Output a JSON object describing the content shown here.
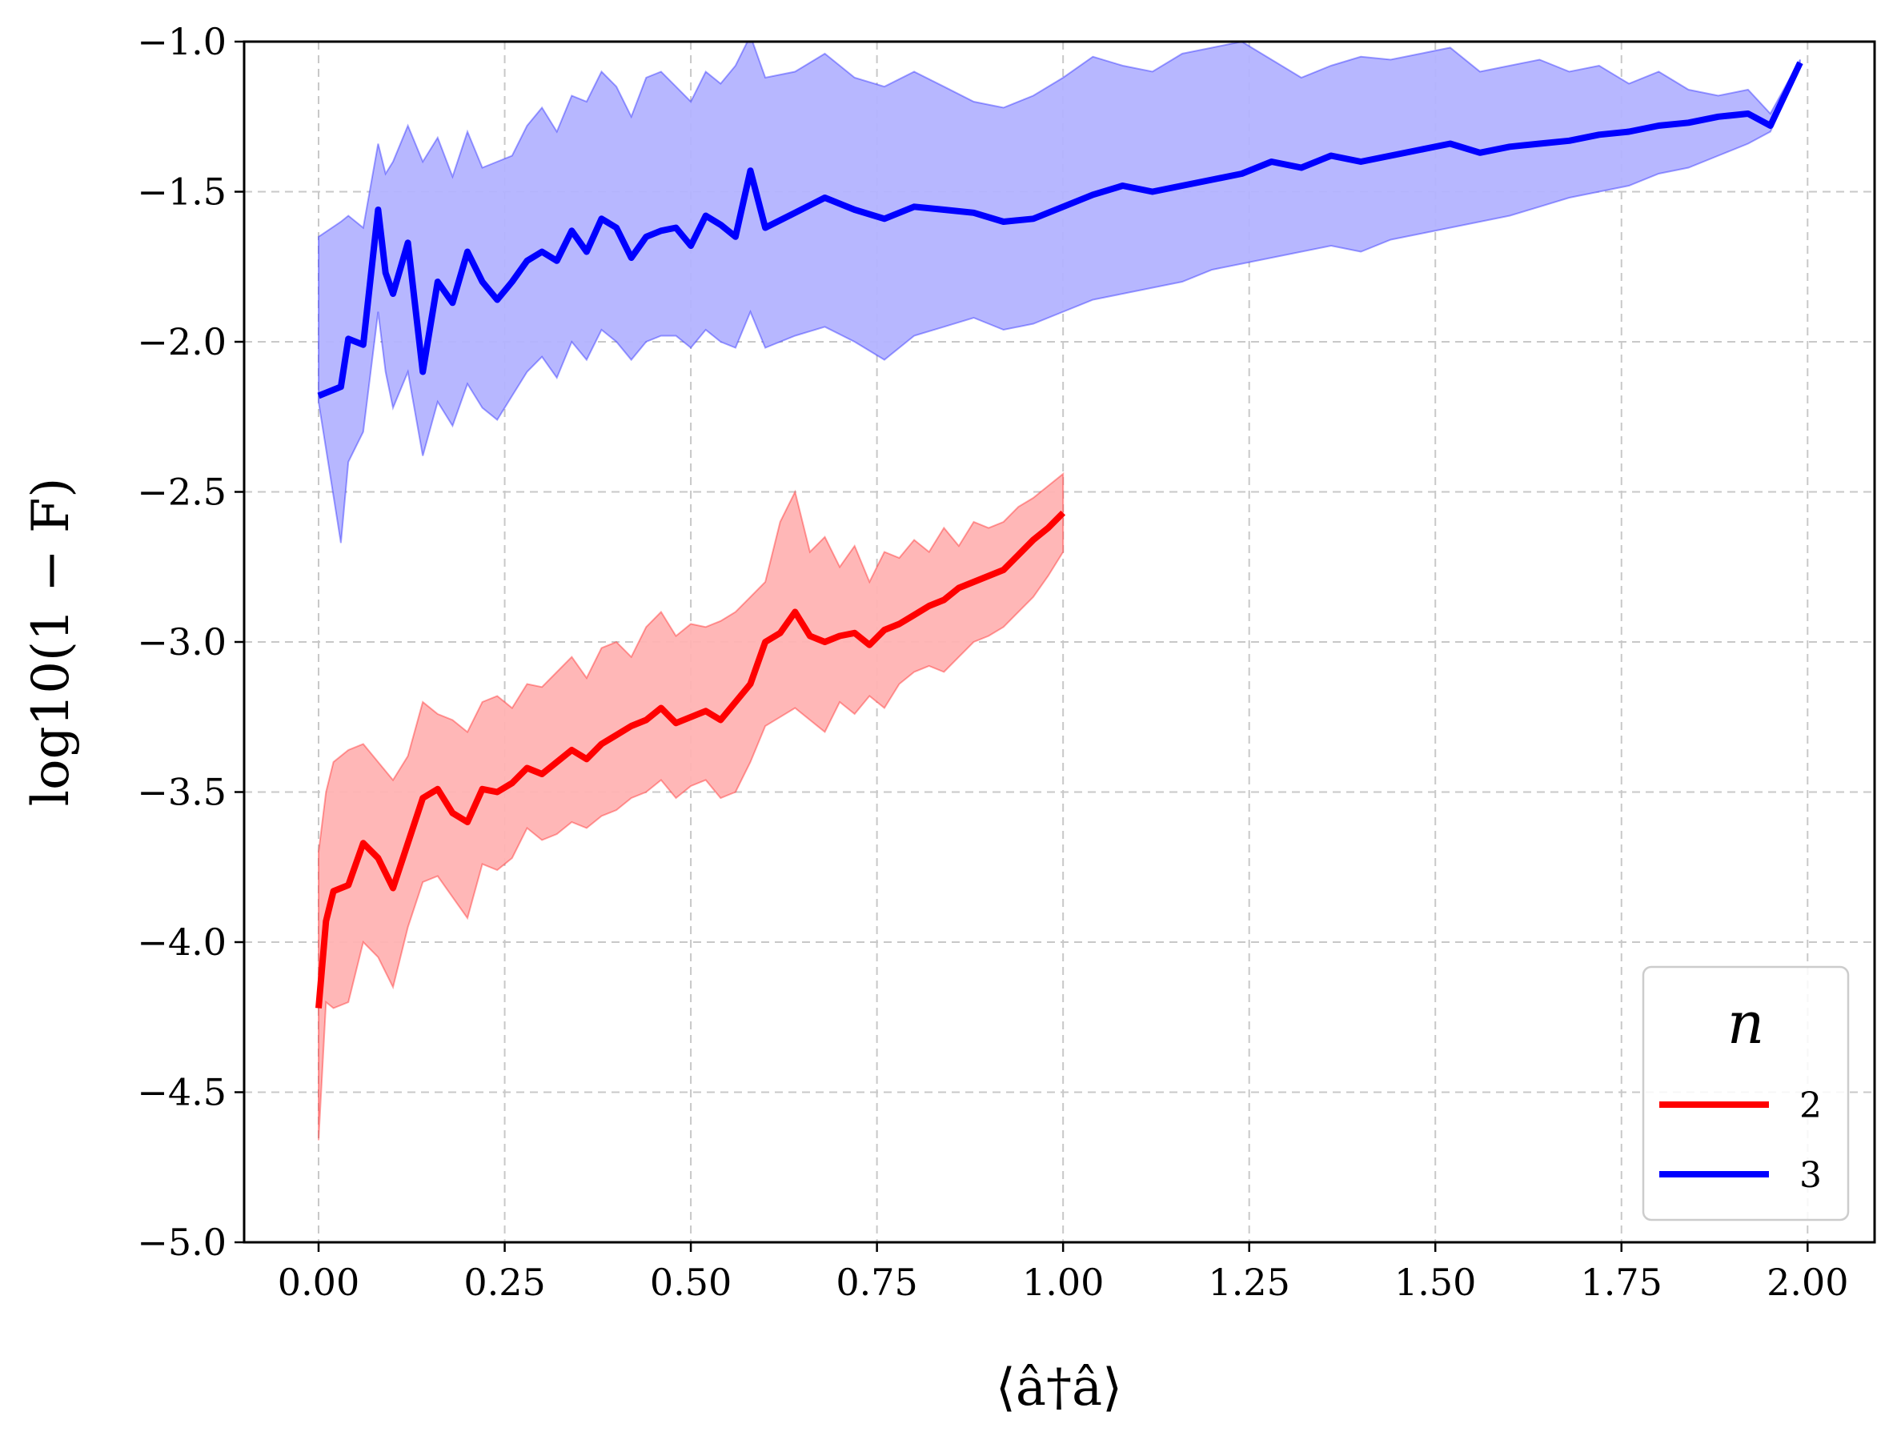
{
  "chart_data": {
    "type": "line",
    "title": "",
    "xlabel": "⟨â†â⟩",
    "ylabel": "log10(1 − F)",
    "xlim": [
      -0.1,
      2.09
    ],
    "ylim": [
      -5.0,
      -1.0
    ],
    "x_ticks": [
      "0.00",
      "0.25",
      "0.50",
      "0.75",
      "1.00",
      "1.25",
      "1.50",
      "1.75",
      "2.00"
    ],
    "y_ticks": [
      "−1.0",
      "−1.5",
      "−2.0",
      "−2.5",
      "−3.0",
      "−3.5",
      "−4.0",
      "−4.5",
      "−5.0"
    ],
    "grid": true,
    "legend": {
      "title": "n",
      "placement": "bottom-right"
    },
    "series": [
      {
        "name": "2",
        "color": "#ff0000",
        "band_color": "#ffb3b3",
        "x": [
          0.0,
          0.01,
          0.02,
          0.04,
          0.06,
          0.08,
          0.1,
          0.12,
          0.14,
          0.16,
          0.18,
          0.2,
          0.22,
          0.24,
          0.26,
          0.28,
          0.3,
          0.32,
          0.34,
          0.36,
          0.38,
          0.4,
          0.42,
          0.44,
          0.46,
          0.48,
          0.5,
          0.52,
          0.54,
          0.56,
          0.58,
          0.6,
          0.62,
          0.64,
          0.66,
          0.68,
          0.7,
          0.72,
          0.74,
          0.76,
          0.78,
          0.8,
          0.82,
          0.84,
          0.86,
          0.88,
          0.9,
          0.92,
          0.94,
          0.96,
          0.98,
          1.0
        ],
        "y": [
          -4.22,
          -3.93,
          -3.83,
          -3.81,
          -3.67,
          -3.72,
          -3.82,
          -3.67,
          -3.52,
          -3.49,
          -3.57,
          -3.6,
          -3.49,
          -3.5,
          -3.47,
          -3.42,
          -3.44,
          -3.4,
          -3.36,
          -3.39,
          -3.34,
          -3.31,
          -3.28,
          -3.26,
          -3.22,
          -3.27,
          -3.25,
          -3.23,
          -3.26,
          -3.2,
          -3.14,
          -3.0,
          -2.97,
          -2.9,
          -2.98,
          -3.0,
          -2.98,
          -2.97,
          -3.01,
          -2.96,
          -2.94,
          -2.91,
          -2.88,
          -2.86,
          -2.82,
          -2.8,
          -2.78,
          -2.76,
          -2.71,
          -2.66,
          -2.62,
          -2.57
        ],
        "upper": [
          -3.7,
          -3.5,
          -3.4,
          -3.36,
          -3.34,
          -3.4,
          -3.46,
          -3.38,
          -3.2,
          -3.24,
          -3.26,
          -3.3,
          -3.2,
          -3.18,
          -3.22,
          -3.14,
          -3.15,
          -3.1,
          -3.05,
          -3.12,
          -3.02,
          -3.0,
          -3.05,
          -2.95,
          -2.9,
          -2.98,
          -2.94,
          -2.95,
          -2.93,
          -2.9,
          -2.85,
          -2.8,
          -2.6,
          -2.5,
          -2.7,
          -2.65,
          -2.75,
          -2.68,
          -2.8,
          -2.7,
          -2.72,
          -2.66,
          -2.7,
          -2.62,
          -2.68,
          -2.6,
          -2.62,
          -2.6,
          -2.55,
          -2.52,
          -2.48,
          -2.44
        ],
        "lower": [
          -4.66,
          -4.2,
          -4.22,
          -4.2,
          -4.0,
          -4.05,
          -4.15,
          -3.95,
          -3.8,
          -3.78,
          -3.85,
          -3.92,
          -3.74,
          -3.76,
          -3.72,
          -3.62,
          -3.66,
          -3.64,
          -3.6,
          -3.62,
          -3.58,
          -3.56,
          -3.52,
          -3.5,
          -3.46,
          -3.52,
          -3.48,
          -3.46,
          -3.52,
          -3.5,
          -3.4,
          -3.28,
          -3.25,
          -3.22,
          -3.26,
          -3.3,
          -3.2,
          -3.24,
          -3.18,
          -3.22,
          -3.14,
          -3.1,
          -3.08,
          -3.1,
          -3.05,
          -3.0,
          -2.98,
          -2.95,
          -2.9,
          -2.85,
          -2.78,
          -2.7
        ]
      },
      {
        "name": "3",
        "color": "#0000ff",
        "band_color": "#b3b3ff",
        "x": [
          0.0,
          0.03,
          0.04,
          0.06,
          0.08,
          0.09,
          0.1,
          0.12,
          0.14,
          0.16,
          0.18,
          0.2,
          0.22,
          0.24,
          0.26,
          0.28,
          0.3,
          0.32,
          0.34,
          0.36,
          0.38,
          0.4,
          0.42,
          0.44,
          0.46,
          0.48,
          0.5,
          0.52,
          0.54,
          0.56,
          0.58,
          0.6,
          0.64,
          0.68,
          0.72,
          0.76,
          0.8,
          0.84,
          0.88,
          0.92,
          0.96,
          1.0,
          1.04,
          1.08,
          1.12,
          1.16,
          1.2,
          1.24,
          1.28,
          1.32,
          1.36,
          1.4,
          1.44,
          1.48,
          1.52,
          1.56,
          1.6,
          1.64,
          1.68,
          1.72,
          1.76,
          1.8,
          1.84,
          1.88,
          1.92,
          1.95,
          1.99
        ],
        "y": [
          -2.18,
          -2.15,
          -1.99,
          -2.01,
          -1.56,
          -1.77,
          -1.84,
          -1.67,
          -2.1,
          -1.8,
          -1.87,
          -1.7,
          -1.8,
          -1.86,
          -1.8,
          -1.73,
          -1.7,
          -1.73,
          -1.63,
          -1.7,
          -1.59,
          -1.62,
          -1.72,
          -1.65,
          -1.63,
          -1.62,
          -1.68,
          -1.58,
          -1.61,
          -1.65,
          -1.43,
          -1.62,
          -1.57,
          -1.52,
          -1.56,
          -1.59,
          -1.55,
          -1.56,
          -1.57,
          -1.6,
          -1.59,
          -1.55,
          -1.51,
          -1.48,
          -1.5,
          -1.48,
          -1.46,
          -1.44,
          -1.4,
          -1.42,
          -1.38,
          -1.4,
          -1.38,
          -1.36,
          -1.34,
          -1.37,
          -1.35,
          -1.34,
          -1.33,
          -1.31,
          -1.3,
          -1.28,
          -1.27,
          -1.25,
          -1.24,
          -1.28,
          -1.07
        ],
        "upper": [
          -1.65,
          -1.6,
          -1.58,
          -1.62,
          -1.34,
          -1.44,
          -1.4,
          -1.28,
          -1.4,
          -1.32,
          -1.45,
          -1.3,
          -1.42,
          -1.4,
          -1.38,
          -1.28,
          -1.22,
          -1.3,
          -1.18,
          -1.2,
          -1.1,
          -1.15,
          -1.25,
          -1.12,
          -1.1,
          -1.15,
          -1.2,
          -1.1,
          -1.14,
          -1.08,
          -0.98,
          -1.12,
          -1.1,
          -1.04,
          -1.12,
          -1.15,
          -1.1,
          -1.15,
          -1.2,
          -1.22,
          -1.18,
          -1.12,
          -1.05,
          -1.08,
          -1.1,
          -1.04,
          -1.02,
          -1.0,
          -1.06,
          -1.12,
          -1.08,
          -1.05,
          -1.06,
          -1.04,
          -1.02,
          -1.1,
          -1.08,
          -1.06,
          -1.1,
          -1.08,
          -1.14,
          -1.1,
          -1.16,
          -1.18,
          -1.16,
          -1.24,
          -1.06
        ],
        "lower": [
          -2.2,
          -2.67,
          -2.4,
          -2.3,
          -1.9,
          -2.1,
          -2.22,
          -2.1,
          -2.38,
          -2.2,
          -2.28,
          -2.14,
          -2.22,
          -2.26,
          -2.18,
          -2.1,
          -2.05,
          -2.12,
          -2.0,
          -2.06,
          -1.96,
          -2.0,
          -2.06,
          -2.0,
          -1.98,
          -1.98,
          -2.02,
          -1.96,
          -2.0,
          -2.02,
          -1.9,
          -2.02,
          -1.98,
          -1.95,
          -2.0,
          -2.06,
          -1.98,
          -1.95,
          -1.92,
          -1.96,
          -1.94,
          -1.9,
          -1.86,
          -1.84,
          -1.82,
          -1.8,
          -1.76,
          -1.74,
          -1.72,
          -1.7,
          -1.68,
          -1.7,
          -1.66,
          -1.64,
          -1.62,
          -1.6,
          -1.58,
          -1.55,
          -1.52,
          -1.5,
          -1.48,
          -1.44,
          -1.42,
          -1.38,
          -1.34,
          -1.3,
          -1.08
        ]
      }
    ]
  }
}
